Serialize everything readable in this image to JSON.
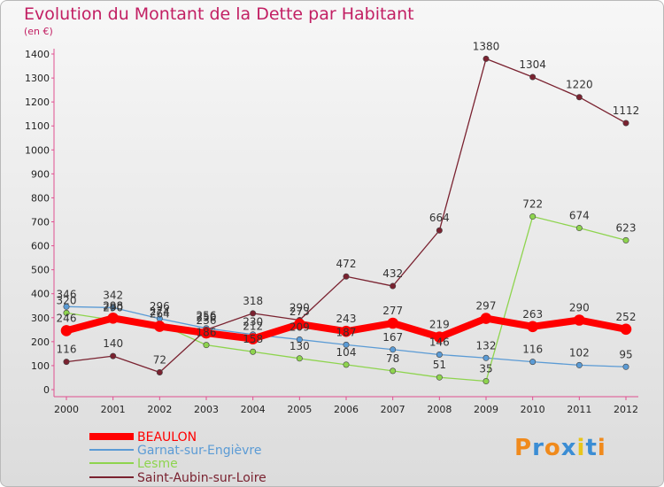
{
  "chart_data": {
    "type": "line",
    "title": "Evolution du Montant de la Dette par Habitant",
    "subtitle": "(en €)",
    "x": [
      "2000",
      "2001",
      "2002",
      "2003",
      "2004",
      "2005",
      "2006",
      "2007",
      "2008",
      "2009",
      "2010",
      "2011",
      "2012"
    ],
    "ylim": [
      0,
      1400
    ],
    "yticks": [
      0,
      100,
      200,
      300,
      400,
      500,
      600,
      700,
      800,
      900,
      1000,
      1100,
      1200,
      1300,
      1400
    ],
    "grid": false,
    "legend": "bottom-left",
    "series": [
      {
        "name": "BEAULON",
        "color": "#ff0000",
        "values": [
          246,
          298,
          264,
          236,
          212,
          273,
          243,
          277,
          219,
          297,
          263,
          290,
          252
        ]
      },
      {
        "name": "Garnat-sur-Engièvre",
        "color": "#5b9bd5",
        "values": [
          346,
          342,
          296,
          256,
          230,
          209,
          187,
          167,
          146,
          132,
          116,
          102,
          95
        ]
      },
      {
        "name": "Lesme",
        "color": "#8ed44e",
        "values": [
          320,
          290,
          274,
          186,
          158,
          130,
          104,
          78,
          51,
          35,
          722,
          674,
          623
        ]
      },
      {
        "name": "Saint-Aubin-sur-Loire",
        "color": "#7a2230",
        "values": [
          116,
          140,
          72,
          250,
          318,
          290,
          472,
          432,
          664,
          1380,
          1304,
          1220,
          1112
        ]
      }
    ]
  },
  "logo": {
    "letters": [
      "P",
      "r",
      "o",
      "x",
      "i",
      "t",
      "i"
    ],
    "colors": [
      "#f08a1c",
      "#3b8dd4",
      "#f08a1c",
      "#3b8dd4",
      "#e8c51a",
      "#3b8dd4",
      "#f08a1c"
    ]
  }
}
